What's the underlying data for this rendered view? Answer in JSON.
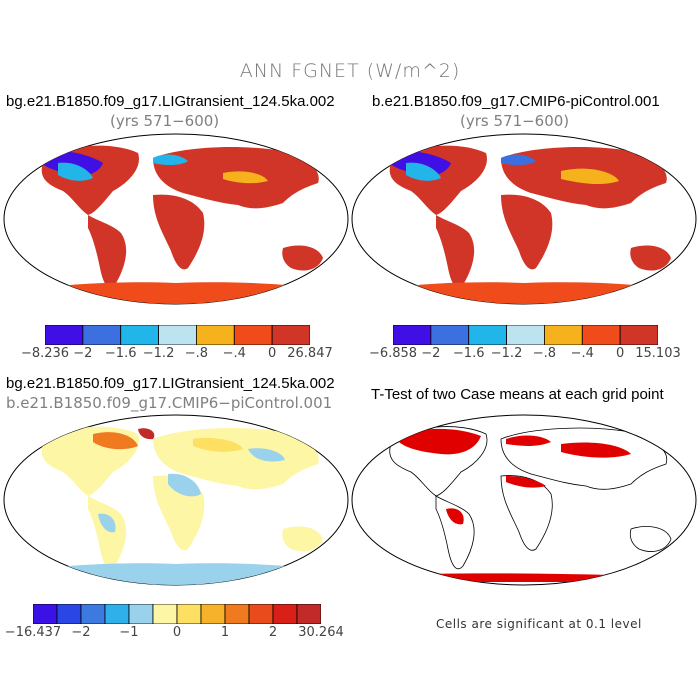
{
  "figure": {
    "title": "ANN FGNET (W/m^2)"
  },
  "panels": [
    {
      "title": "bg.e21.B1850.f09_g17.LIGtransient_124.5ka.002",
      "subtitle": "(yrs 571−600)",
      "colorbar": {
        "colors": [
          "#3f0fe6",
          "#3c6fe0",
          "#21b5ea",
          "#bde3f1",
          "#f6b21c",
          "#ef4b1b",
          "#d03528"
        ],
        "labels": [
          "−8.236",
          "−2",
          "−1.6",
          "−1.2",
          "−.8",
          "−.4",
          "0",
          "26.847"
        ]
      }
    },
    {
      "title": "b.e21.B1850.f09_g17.CMIP6-piControl.001",
      "subtitle": "(yrs 571−600)",
      "colorbar": {
        "colors": [
          "#3f0fe6",
          "#3c6fe0",
          "#21b5ea",
          "#bde3f1",
          "#f6b21c",
          "#ef4b1b",
          "#d03528"
        ],
        "labels": [
          "−6.858",
          "−2",
          "−1.6",
          "−1.2",
          "−.8",
          "−.4",
          "0",
          "15.103"
        ]
      }
    },
    {
      "title": "bg.e21.B1850.f09_g17.LIGtransient_124.5ka.002",
      "subtitle": "b.e21.B1850.f09_g17.CMIP6−piControl.001",
      "colorbar": {
        "colors": [
          "#3a12e6",
          "#2a47e6",
          "#3c7ae0",
          "#2fb0ea",
          "#99d2ea",
          "#fdf6a5",
          "#fde061",
          "#f7b22c",
          "#f07a20",
          "#ea4b1c",
          "#d82018",
          "#c22a2a"
        ],
        "labels": [
          "−16.437",
          "−2",
          "−1",
          "0",
          "1",
          "2",
          "30.264"
        ]
      }
    },
    {
      "title": "T-Test of two Case means at each grid point",
      "footnote": "Cells are significant at 0.1 level"
    }
  ]
}
